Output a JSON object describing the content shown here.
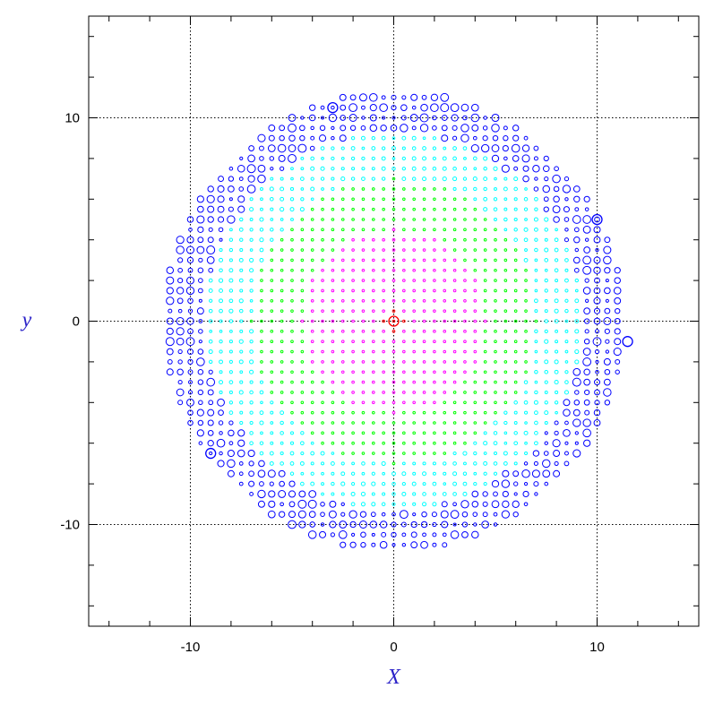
{
  "chart_data": {
    "type": "scatter",
    "title": "",
    "xlabel": "X",
    "ylabel": "y",
    "xlim": [
      -15,
      15
    ],
    "ylim": [
      -15,
      15
    ],
    "xticks": [
      -10,
      0,
      10
    ],
    "yticks": [
      -10,
      0,
      10
    ],
    "xtick_labels": [
      "-10",
      "0",
      "10"
    ],
    "ytick_labels": [
      "-10",
      "0",
      "10"
    ],
    "minor_tick_step": 2,
    "grid": "dotted lines at x=-10,0,10 and y=-10,0,10",
    "point_grid": {
      "spacing": 0.5,
      "extent_radius": 11.3,
      "marker": "open circle",
      "color_by_radius": [
        {
          "max_r": 0.5,
          "color": "#ff0000"
        },
        {
          "max_r": 4.5,
          "color": "#ff00ff"
        },
        {
          "max_r": 7.0,
          "color": "#00ff00"
        },
        {
          "max_r": 9.3,
          "color": "#00ffff"
        },
        {
          "max_r": 11.3,
          "color": "#0000ff"
        }
      ]
    },
    "highlight_points": [
      {
        "x": 0,
        "y": 0,
        "color": "#ff0000",
        "size": "large"
      },
      {
        "x": -9,
        "y": -6.5,
        "color": "#0000ff",
        "size": "large"
      },
      {
        "x": 11.5,
        "y": -1,
        "color": "#0000ff",
        "size": "large"
      },
      {
        "x": 10,
        "y": 5,
        "color": "#0000ff",
        "size": "large"
      },
      {
        "x": -3,
        "y": 10.5,
        "color": "#0000ff",
        "size": "large"
      }
    ],
    "colors": {
      "axis_title": "#2b22c8",
      "frame": "#000000"
    }
  }
}
